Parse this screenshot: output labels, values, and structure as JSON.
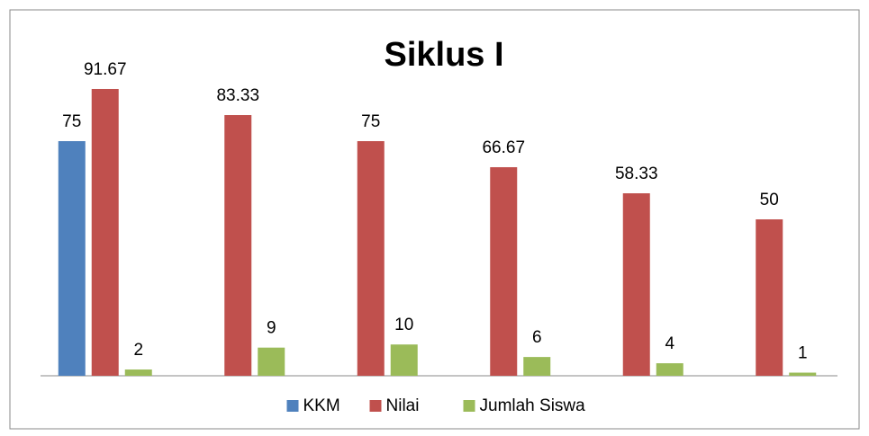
{
  "chart_data": {
    "type": "bar",
    "title": "Siklus I",
    "categories": [
      null,
      null,
      null,
      null,
      null,
      null
    ],
    "series": [
      {
        "name": "KKM",
        "color": "#4f81bd",
        "values": [
          75,
          null,
          null,
          null,
          null,
          null
        ]
      },
      {
        "name": "Nilai",
        "color": "#c0504d",
        "values": [
          91.67,
          83.33,
          75,
          66.67,
          58.33,
          50
        ]
      },
      {
        "name": "Jumlah Siswa",
        "color": "#9bbb59",
        "values": [
          2,
          9,
          10,
          6,
          4,
          1
        ]
      }
    ],
    "ylim": [
      0,
      100
    ],
    "legend": "bottom"
  }
}
